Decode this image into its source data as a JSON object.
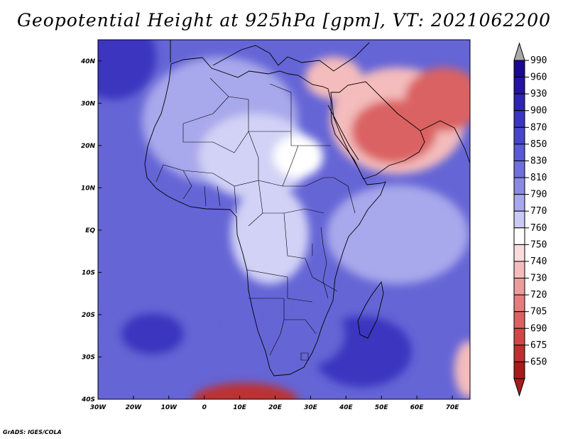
{
  "title": "Geopotential Height at 925hPa [gpm], VT: 2021062200",
  "credit": "GrADS: IGES/COLA",
  "map": {
    "lon_range": [
      -30,
      75
    ],
    "lat_range": [
      -40,
      45
    ],
    "lon_ticks": [
      {
        "value": -30,
        "label": "30W"
      },
      {
        "value": -20,
        "label": "20W"
      },
      {
        "value": -10,
        "label": "10W"
      },
      {
        "value": 0,
        "label": "0"
      },
      {
        "value": 10,
        "label": "10E"
      },
      {
        "value": 20,
        "label": "20E"
      },
      {
        "value": 30,
        "label": "30E"
      },
      {
        "value": 40,
        "label": "40E"
      },
      {
        "value": 50,
        "label": "50E"
      },
      {
        "value": 60,
        "label": "60E"
      },
      {
        "value": 70,
        "label": "70E"
      }
    ],
    "lat_ticks": [
      {
        "value": 40,
        "label": "40N"
      },
      {
        "value": 30,
        "label": "30N"
      },
      {
        "value": 20,
        "label": "20N"
      },
      {
        "value": 10,
        "label": "10N"
      },
      {
        "value": 0,
        "label": "EQ"
      },
      {
        "value": -10,
        "label": "10S"
      },
      {
        "value": -20,
        "label": "20S"
      },
      {
        "value": -30,
        "label": "30S"
      },
      {
        "value": -40,
        "label": "40S"
      }
    ]
  },
  "colorbar": {
    "levels": [
      {
        "label": "990",
        "color": "#1a0a8c"
      },
      {
        "label": "960",
        "color": "#24149e"
      },
      {
        "label": "930",
        "color": "#2e26b0"
      },
      {
        "label": "900",
        "color": "#3a36bf"
      },
      {
        "label": "870",
        "color": "#4846c8"
      },
      {
        "label": "850",
        "color": "#5a5ad2"
      },
      {
        "label": "830",
        "color": "#7070da"
      },
      {
        "label": "810",
        "color": "#8a8ae2"
      },
      {
        "label": "790",
        "color": "#a8a8ec"
      },
      {
        "label": "770",
        "color": "#cacaf4"
      },
      {
        "label": "760",
        "color": "#ffffff"
      },
      {
        "label": "750",
        "color": "#fadcdc"
      },
      {
        "label": "740",
        "color": "#f4bcbc"
      },
      {
        "label": "730",
        "color": "#ec9c9c"
      },
      {
        "label": "720",
        "color": "#e47e7e"
      },
      {
        "label": "705",
        "color": "#da6262"
      },
      {
        "label": "690",
        "color": "#ce4848"
      },
      {
        "label": "675",
        "color": "#bc3030"
      },
      {
        "label": "650",
        "color": "#a41c1c"
      }
    ],
    "top_cap_color": "#a9a9a9",
    "bottom_cap_color": "#a41c1c"
  },
  "colors": {
    "ocean": "#6565d6",
    "deep_blue": "#3a36bf",
    "land_blue": "#a8a8ec",
    "light_land": "#d2d2f6",
    "white": "#ffffff",
    "pink": "#f4bcbc",
    "red": "#da6262",
    "dark_red": "#bc3030"
  }
}
